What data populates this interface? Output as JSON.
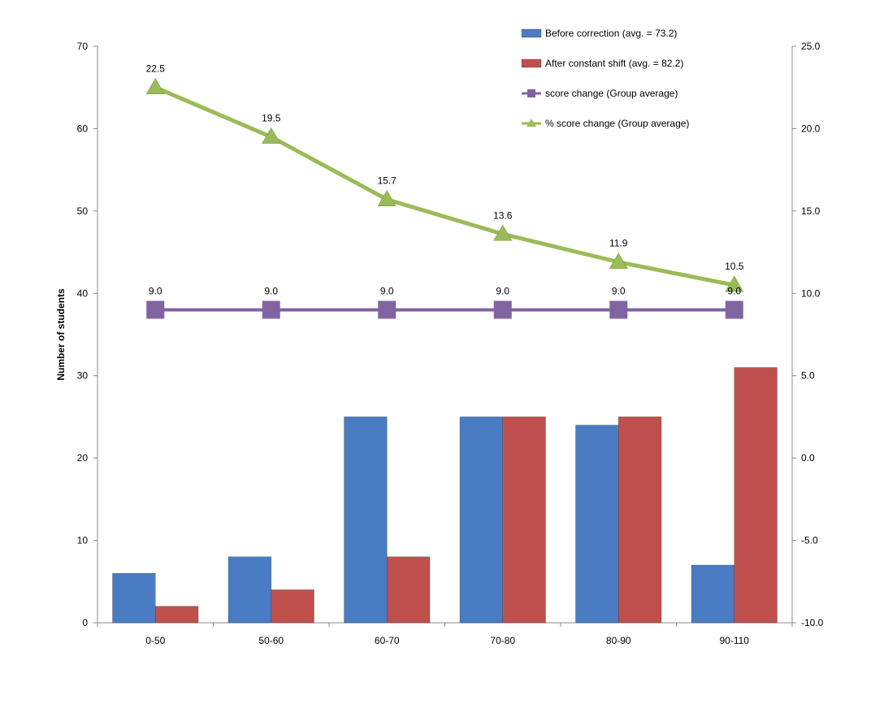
{
  "chart_data": {
    "type": "bar",
    "categories": [
      "0-50",
      "50-60",
      "60-70",
      "70-80",
      "80-90",
      "90-110"
    ],
    "series": [
      {
        "name": "Before correction (avg. = 73.2)",
        "type": "bar",
        "axis": "left",
        "values": [
          6,
          8,
          25,
          25,
          24,
          7
        ],
        "color": "#4a7cc4"
      },
      {
        "name": "After constant shift (avg. = 82.2)",
        "type": "bar",
        "axis": "left",
        "values": [
          2,
          4,
          8,
          25,
          25,
          31
        ],
        "color": "#c0504d"
      },
      {
        "name": "score change (Group average)",
        "type": "line",
        "marker": "square",
        "axis": "right",
        "values": [
          9.0,
          9.0,
          9.0,
          9.0,
          9.0,
          9.0
        ],
        "labels": [
          "9.0",
          "9.0",
          "9.0",
          "9.0",
          "9.0",
          "9.0"
        ],
        "color": "#8064a2"
      },
      {
        "name": "% score change (Group average)",
        "type": "line",
        "marker": "triangle",
        "axis": "right",
        "values": [
          22.5,
          19.5,
          15.7,
          13.6,
          11.9,
          10.5
        ],
        "labels": [
          "22.5",
          "19.5",
          "15.7",
          "13.6",
          "11.9",
          "10.5"
        ],
        "color": "#9bbb59"
      }
    ],
    "ylabel": "Number of students",
    "ylim": [
      0,
      70
    ],
    "yticks": [
      "0",
      "10",
      "20",
      "30",
      "40",
      "50",
      "60",
      "70"
    ],
    "y2lim": [
      -10,
      25
    ],
    "y2ticks": [
      "-10.0",
      "-5.0",
      "0.0",
      "5.0",
      "10.0",
      "15.0",
      "20.0",
      "25.0"
    ],
    "legend": "top-right",
    "grid": false
  }
}
